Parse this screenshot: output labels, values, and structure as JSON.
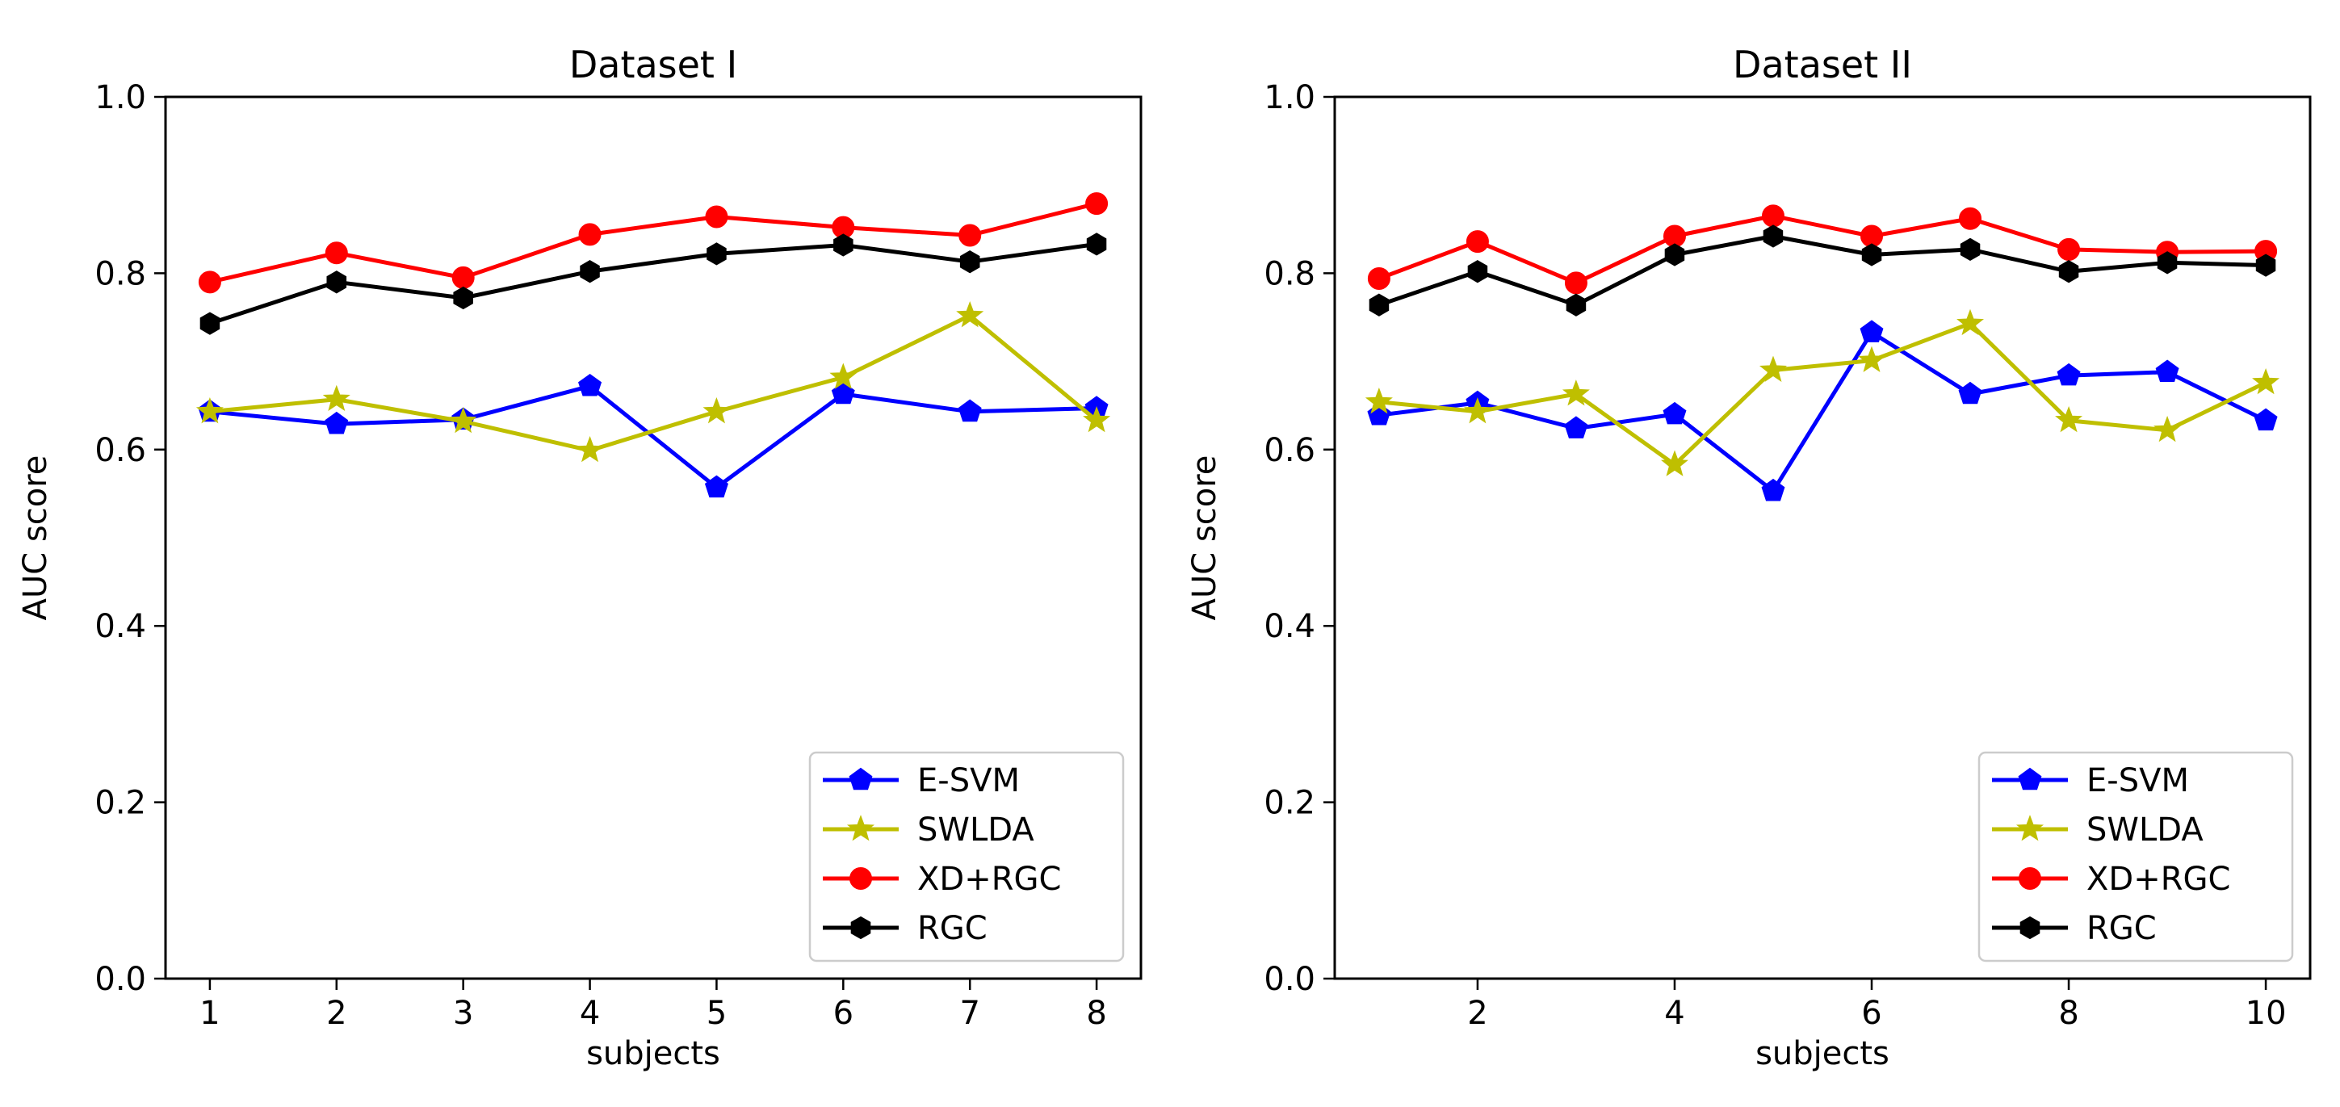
{
  "chart_data": [
    {
      "type": "line",
      "title": "Dataset I",
      "xlabel": "subjects",
      "ylabel": "AUC score",
      "xlim": [
        0.65,
        8.35
      ],
      "ylim": [
        0.0,
        1.0
      ],
      "xticks": [
        1,
        2,
        3,
        4,
        5,
        6,
        7,
        8
      ],
      "yticks": [
        0.0,
        0.2,
        0.4,
        0.6,
        0.8,
        1.0
      ],
      "ytick_labels": [
        "0.0",
        "0.2",
        "0.4",
        "0.6",
        "0.8",
        "1.0"
      ],
      "x": [
        1,
        2,
        3,
        4,
        5,
        6,
        7,
        8
      ],
      "grid": false,
      "legend_position": "lower-right",
      "series": [
        {
          "name": "E-SVM",
          "color": "#0000ff",
          "marker": "pentagon",
          "values": [
            0.643,
            0.629,
            0.634,
            0.672,
            0.557,
            0.663,
            0.643,
            0.647
          ]
        },
        {
          "name": "SWLDA",
          "color": "#bfbf00",
          "marker": "star",
          "values": [
            0.643,
            0.657,
            0.632,
            0.599,
            0.643,
            0.682,
            0.752,
            0.633
          ]
        },
        {
          "name": "XD+RGC",
          "color": "#ff0000",
          "marker": "circle",
          "values": [
            0.79,
            0.823,
            0.795,
            0.844,
            0.864,
            0.852,
            0.843,
            0.879
          ]
        },
        {
          "name": "RGC",
          "color": "#000000",
          "marker": "hexagon",
          "values": [
            0.743,
            0.79,
            0.772,
            0.802,
            0.822,
            0.832,
            0.813,
            0.833
          ]
        }
      ]
    },
    {
      "type": "line",
      "title": "Dataset II",
      "xlabel": "subjects",
      "ylabel": "AUC score",
      "xlim": [
        0.55,
        10.45
      ],
      "ylim": [
        0.0,
        1.0
      ],
      "xticks": [
        2,
        4,
        6,
        8,
        10
      ],
      "yticks": [
        0.0,
        0.2,
        0.4,
        0.6,
        0.8,
        1.0
      ],
      "ytick_labels": [
        "0.0",
        "0.2",
        "0.4",
        "0.6",
        "0.8",
        "1.0"
      ],
      "x": [
        1,
        2,
        3,
        4,
        5,
        6,
        7,
        8,
        9,
        10
      ],
      "grid": false,
      "legend_position": "lower-right",
      "series": [
        {
          "name": "E-SVM",
          "color": "#0000ff",
          "marker": "pentagon",
          "values": [
            0.639,
            0.653,
            0.624,
            0.64,
            0.553,
            0.733,
            0.663,
            0.684,
            0.688,
            0.633
          ]
        },
        {
          "name": "SWLDA",
          "color": "#bfbf00",
          "marker": "star",
          "values": [
            0.654,
            0.643,
            0.663,
            0.583,
            0.69,
            0.701,
            0.743,
            0.633,
            0.622,
            0.676
          ]
        },
        {
          "name": "XD+RGC",
          "color": "#ff0000",
          "marker": "circle",
          "values": [
            0.794,
            0.836,
            0.789,
            0.842,
            0.865,
            0.842,
            0.862,
            0.827,
            0.824,
            0.825
          ]
        },
        {
          "name": "RGC",
          "color": "#000000",
          "marker": "hexagon",
          "values": [
            0.764,
            0.802,
            0.764,
            0.821,
            0.842,
            0.821,
            0.827,
            0.802,
            0.812,
            0.809
          ]
        }
      ]
    }
  ]
}
